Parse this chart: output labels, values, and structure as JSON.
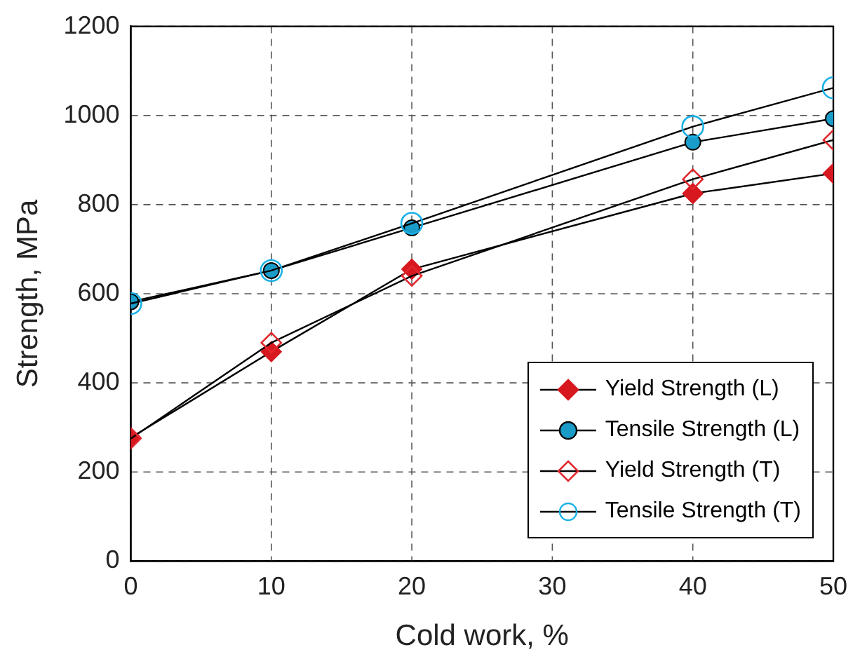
{
  "chart_data": {
    "type": "line",
    "xlabel": "Cold work, %",
    "ylabel": "Strength, MPa",
    "x": [
      0,
      10,
      20,
      40,
      50
    ],
    "xlim": [
      0,
      50
    ],
    "xticks": [
      0,
      10,
      20,
      30,
      40,
      50
    ],
    "ylim": [
      0,
      1200
    ],
    "yticks": [
      0,
      200,
      400,
      600,
      800,
      1000,
      1200
    ],
    "grid": true,
    "legend": "bottom right",
    "line_style": "solid",
    "series": [
      {
        "name": "Yield Strength (L)",
        "color": "#d7191f",
        "marker": "diamond",
        "values": [
          277,
          470,
          655,
          825,
          870
        ]
      },
      {
        "name": "Tensile Strength (L)",
        "color": "#1a9cc8",
        "marker": "circle",
        "values": [
          582,
          652,
          748,
          940,
          993
        ]
      },
      {
        "name": "Yield Strength (T)",
        "color": "#e0282e",
        "marker": "diamond",
        "values": [
          275,
          490,
          640,
          857,
          945
        ]
      },
      {
        "name": "Tensile Strength (T)",
        "color": "#1ab0e6",
        "marker": "circle",
        "values": [
          578,
          652,
          758,
          975,
          1062
        ]
      }
    ]
  }
}
